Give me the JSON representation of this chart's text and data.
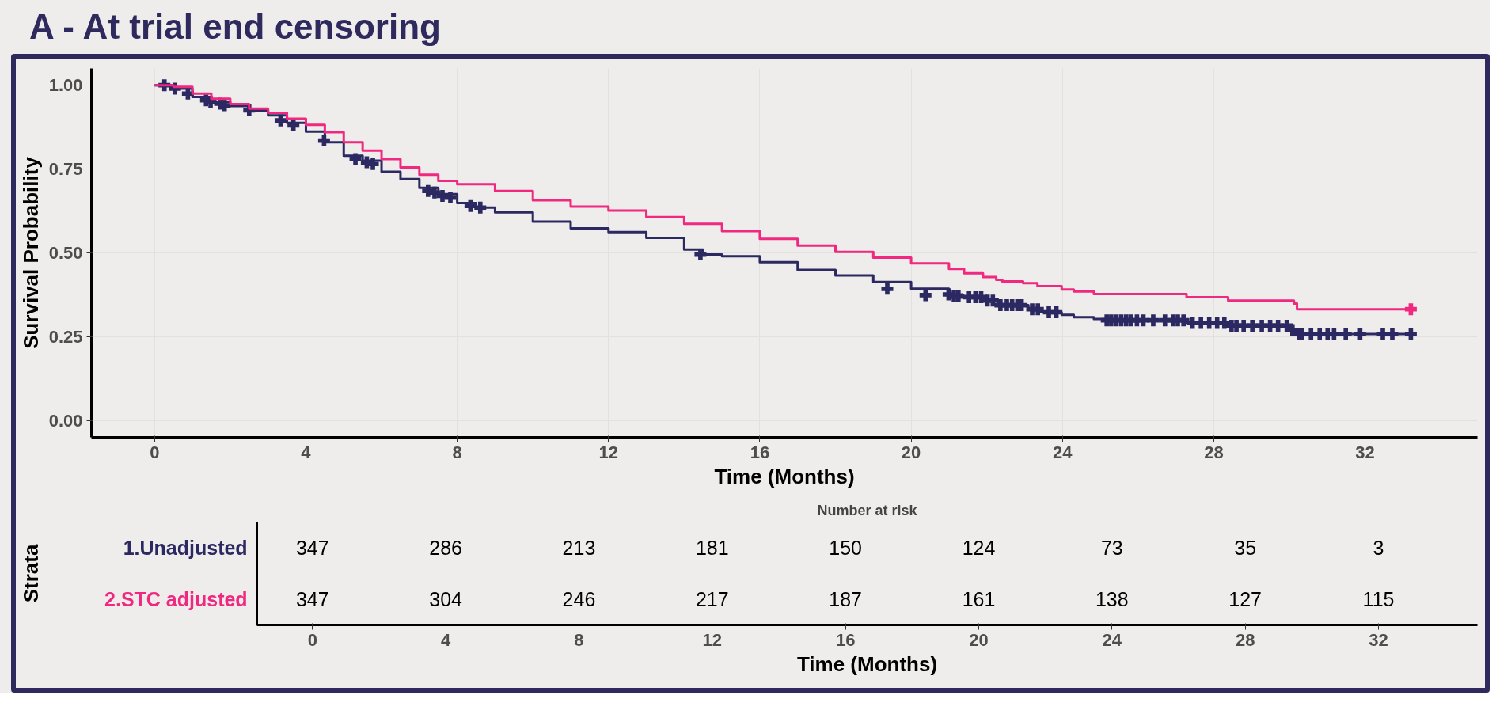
{
  "chart_data": [
    {
      "type": "step",
      "title": "A - At trial end censoring",
      "xlabel": "Time (Months)",
      "ylabel": "Survival Probability",
      "xlim": [
        -1.67,
        34.97
      ],
      "ylim": [
        -0.05,
        1.05
      ],
      "xticks": [
        0,
        4,
        8,
        12,
        16,
        20,
        24,
        28,
        32
      ],
      "yticks": [
        {
          "value": 0,
          "label": "0.00"
        },
        0.25,
        {
          "value": 0.5,
          "label": "0.50"
        },
        0.75,
        {
          "value": 1,
          "label": "1.00"
        }
      ],
      "grid": true,
      "series": [
        {
          "type": "step",
          "color": "#2b2862",
          "x": [
            0,
            0.5,
            1,
            1.5,
            2,
            2.5,
            3,
            3.5,
            4,
            4.5,
            5,
            5.5,
            6,
            6.5,
            7,
            7.5,
            8,
            8.5,
            9,
            10,
            11,
            12,
            13,
            14,
            14.5,
            15,
            16,
            17,
            18,
            19,
            20,
            21,
            21.36,
            22.0,
            22.3,
            23.1,
            23.4,
            23.98,
            24.3,
            24.83,
            25.2,
            27.28,
            28.38,
            30.08,
            30.25,
            33.21
          ],
          "values": [
            1.0,
            0.99,
            0.965,
            0.95,
            0.938,
            0.925,
            0.91,
            0.888,
            0.862,
            0.83,
            0.79,
            0.775,
            0.742,
            0.72,
            0.694,
            0.675,
            0.649,
            0.635,
            0.621,
            0.593,
            0.573,
            0.562,
            0.545,
            0.51,
            0.495,
            0.49,
            0.472,
            0.449,
            0.433,
            0.413,
            0.393,
            0.376,
            0.368,
            0.358,
            0.344,
            0.332,
            0.323,
            0.315,
            0.308,
            0.303,
            0.299,
            0.291,
            0.283,
            0.27,
            0.258,
            0.258
          ]
        },
        {
          "type": "step",
          "color": "#f0287f",
          "x": [
            0,
            0.5,
            1,
            1.5,
            2,
            2.5,
            3,
            3.5,
            4,
            4.5,
            5,
            5.5,
            6,
            6.5,
            7,
            7.5,
            8,
            9,
            10,
            11,
            12,
            13,
            14,
            15,
            16,
            17,
            18,
            19,
            20,
            21,
            21.4,
            21.9,
            22.25,
            22.41,
            22.96,
            23.34,
            23.98,
            24.3,
            24.83,
            27.28,
            28.38,
            30.12,
            30.2,
            33.21
          ],
          "values": [
            1.0,
            0.995,
            0.975,
            0.96,
            0.944,
            0.93,
            0.918,
            0.9,
            0.882,
            0.86,
            0.83,
            0.805,
            0.78,
            0.755,
            0.733,
            0.715,
            0.705,
            0.685,
            0.657,
            0.638,
            0.626,
            0.607,
            0.587,
            0.565,
            0.542,
            0.522,
            0.503,
            0.486,
            0.469,
            0.452,
            0.439,
            0.428,
            0.42,
            0.415,
            0.41,
            0.401,
            0.391,
            0.385,
            0.377,
            0.368,
            0.358,
            0.349,
            0.332,
            0.332
          ]
        },
        {
          "type": "scatter",
          "marker": "cross",
          "color": "#2b2862",
          "x": [
            0.26,
            0.54,
            0.88,
            1.36,
            1.48,
            1.73,
            1.85,
            2.5,
            3.33,
            3.67,
            4.48,
            5.31,
            5.61,
            5.77,
            7.23,
            7.4,
            7.61,
            7.82,
            8.35,
            8.61,
            14.43,
            19.37,
            20.38,
            20.99,
            21.13,
            21.25,
            21.53,
            21.7,
            21.85,
            22.02,
            22.16,
            22.36,
            22.53,
            22.67,
            22.81,
            22.92,
            23.2,
            23.35,
            23.64,
            23.84,
            25.17,
            25.29,
            25.42,
            25.55,
            25.68,
            25.8,
            25.97,
            26.14,
            26.4,
            26.71,
            26.93,
            27.05,
            27.2,
            27.44,
            27.66,
            27.88,
            28.09,
            28.28,
            28.47,
            28.6,
            28.79,
            29.02,
            29.27,
            29.49,
            29.7,
            29.93,
            30.08,
            30.25,
            30.33,
            30.57,
            30.8,
            31.01,
            31.18,
            31.49,
            31.87,
            32.47,
            32.72,
            33.21
          ],
          "values": [
            1.0,
            0.99,
            0.975,
            0.955,
            0.95,
            0.945,
            0.94,
            0.925,
            0.895,
            0.88,
            0.835,
            0.78,
            0.77,
            0.765,
            0.685,
            0.68,
            0.67,
            0.665,
            0.64,
            0.635,
            0.495,
            0.393,
            0.374,
            0.376,
            0.37,
            0.37,
            0.368,
            0.368,
            0.368,
            0.358,
            0.358,
            0.344,
            0.344,
            0.344,
            0.344,
            0.344,
            0.332,
            0.332,
            0.323,
            0.323,
            0.299,
            0.299,
            0.299,
            0.299,
            0.299,
            0.299,
            0.299,
            0.299,
            0.299,
            0.299,
            0.299,
            0.299,
            0.299,
            0.291,
            0.291,
            0.291,
            0.291,
            0.291,
            0.283,
            0.283,
            0.283,
            0.283,
            0.283,
            0.283,
            0.283,
            0.283,
            0.27,
            0.258,
            0.258,
            0.258,
            0.258,
            0.258,
            0.258,
            0.258,
            0.258,
            0.258,
            0.258,
            0.258
          ]
        },
        {
          "type": "scatter",
          "marker": "cross",
          "color": "#f0287f",
          "x": [
            33.21
          ],
          "values": [
            0.332
          ]
        }
      ]
    },
    {
      "type": "heatmap",
      "title": "Number at risk",
      "xlabel": "Time (Months)",
      "ylabel": "Strata",
      "categories": [
        "0",
        "4",
        "8",
        "12",
        "16",
        "20",
        "24",
        "28",
        "32"
      ],
      "y_categories": [
        "1.Unadjusted",
        "2.STC adjusted"
      ],
      "data_labels": true,
      "cells": [
        [
          347,
          286,
          213,
          181,
          150,
          124,
          73,
          35,
          3
        ],
        [
          347,
          304,
          246,
          217,
          187,
          161,
          138,
          127,
          115
        ]
      ]
    }
  ]
}
